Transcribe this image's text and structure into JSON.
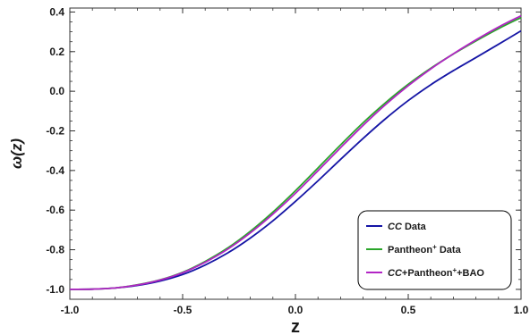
{
  "chart_data": {
    "type": "line",
    "title": "",
    "xlabel": "z",
    "ylabel": "ω(z)",
    "xlim": [
      -1.0,
      1.0
    ],
    "ylim": [
      -1.05,
      0.42
    ],
    "x_ticks": [
      "-1.0",
      "-0.5",
      "0.0",
      "0.5",
      "1.0"
    ],
    "y_ticks": [
      "-1.0",
      "-0.8",
      "-0.6",
      "-0.4",
      "-0.2",
      "0.0",
      "0.2",
      "0.4"
    ],
    "x_tick_values": [
      -1.0,
      -0.5,
      0.0,
      0.5,
      1.0
    ],
    "y_tick_values": [
      -1.0,
      -0.8,
      -0.6,
      -0.4,
      -0.2,
      0.0,
      0.2,
      0.4
    ],
    "grid": false,
    "legend_position": "bottom-right",
    "x": [
      -1.0,
      -0.9,
      -0.8,
      -0.7,
      -0.6,
      -0.5,
      -0.4,
      -0.3,
      -0.2,
      -0.1,
      0.0,
      0.1,
      0.2,
      0.3,
      0.4,
      0.5,
      0.6,
      0.7,
      0.8,
      0.9,
      1.0
    ],
    "series": [
      {
        "name": "CC Data",
        "name_parts": [
          {
            "t": "CC",
            "i": true
          },
          {
            "t": " Data"
          }
        ],
        "color": "#1515a5",
        "values": [
          -1.0,
          -0.999,
          -0.993,
          -0.98,
          -0.958,
          -0.925,
          -0.877,
          -0.816,
          -0.741,
          -0.654,
          -0.556,
          -0.452,
          -0.344,
          -0.238,
          -0.138,
          -0.047,
          0.033,
          0.104,
          0.17,
          0.237,
          0.305
        ]
      },
      {
        "name": "Pantheon+ Data",
        "name_parts": [
          {
            "t": "Pantheon"
          },
          {
            "t": "+",
            "sup": true
          },
          {
            "t": " Data"
          }
        ],
        "color": "#2aa52a",
        "values": [
          -1.0,
          -0.999,
          -0.993,
          -0.977,
          -0.952,
          -0.914,
          -0.859,
          -0.791,
          -0.707,
          -0.61,
          -0.502,
          -0.387,
          -0.271,
          -0.159,
          -0.057,
          0.035,
          0.116,
          0.188,
          0.254,
          0.316,
          0.372
        ]
      },
      {
        "name": "CC+Pantheon+ +BAO",
        "name_parts": [
          {
            "t": "CC",
            "i": true
          },
          {
            "t": "+Pantheon"
          },
          {
            "t": "+",
            "sup": true
          },
          {
            "t": "+BAO"
          }
        ],
        "color": "#b225c5",
        "values": [
          -1.0,
          -0.999,
          -0.993,
          -0.978,
          -0.953,
          -0.916,
          -0.863,
          -0.797,
          -0.715,
          -0.62,
          -0.515,
          -0.401,
          -0.285,
          -0.172,
          -0.067,
          0.028,
          0.113,
          0.189,
          0.259,
          0.324,
          0.381
        ]
      }
    ]
  }
}
